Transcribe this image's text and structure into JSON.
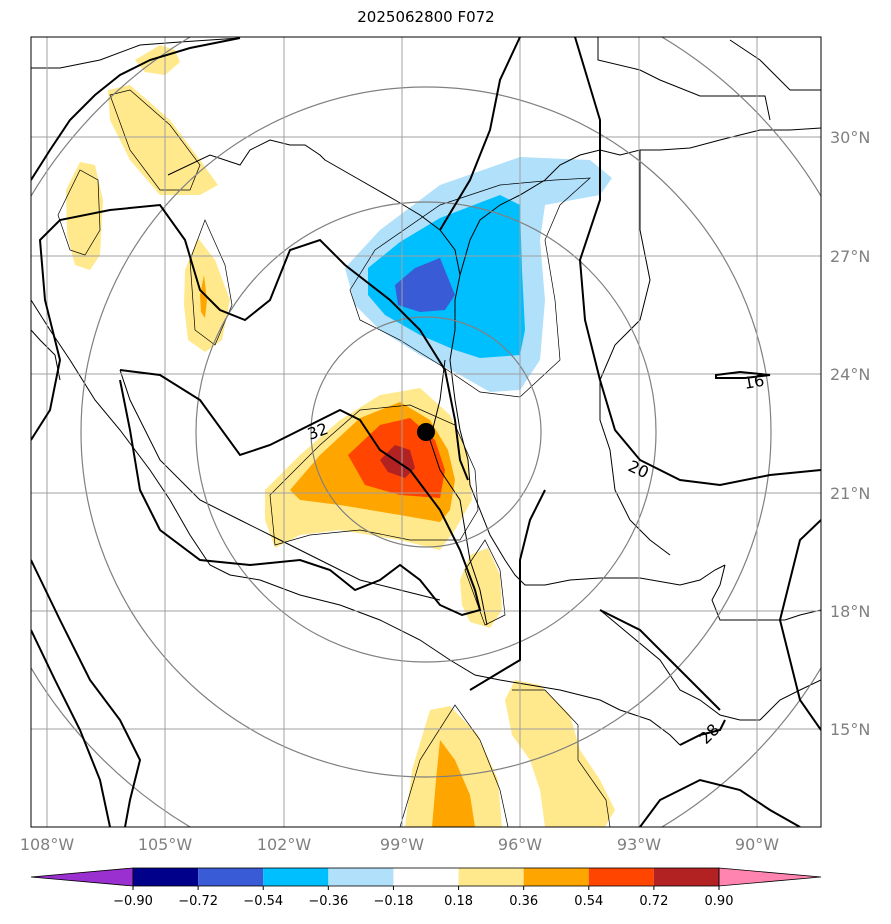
{
  "title": "2025062800 F072",
  "map": {
    "latitude_labels": [
      "30°N",
      "27°N",
      "24°N",
      "21°N",
      "18°N",
      "15°N"
    ],
    "longitude_labels": [
      "108°W",
      "105°W",
      "102°W",
      "99°W",
      "96°W",
      "93°W",
      "90°W"
    ],
    "contour_labels": [
      "16",
      "20",
      "28",
      "32"
    ],
    "center_marker": "black-dot"
  },
  "colorbar": {
    "ticks": [
      "−0.90",
      "−0.72",
      "−0.54",
      "−0.36",
      "−0.18",
      "0.18",
      "0.36",
      "0.54",
      "0.72",
      "0.90"
    ],
    "colors": [
      "#9b30d0",
      "#00008b",
      "#3a5bd6",
      "#00bfff",
      "#b0e0fa",
      "#ffffff",
      "#ffe98c",
      "#ffa500",
      "#ff4500",
      "#b22222",
      "#ff85b0"
    ],
    "extend": "both"
  }
}
